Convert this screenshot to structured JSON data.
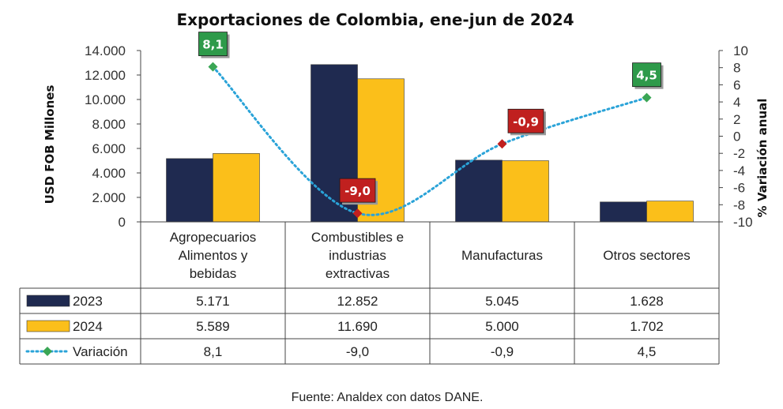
{
  "chart_data": {
    "type": "bar",
    "title": "Exportaciones de Colombia, ene-jun de 2024",
    "ylabel": "USD FOB Millones",
    "y2label": "% Variación anual",
    "ylim": [
      0,
      14000
    ],
    "y2lim": [
      -10,
      10
    ],
    "yticks": [
      "0",
      "2.000",
      "4.000",
      "6.000",
      "8.000",
      "10.000",
      "12.000",
      "14.000"
    ],
    "y2ticks": [
      "-10",
      "-8",
      "-6",
      "-4",
      "-2",
      "0",
      "2",
      "4",
      "6",
      "8",
      "10"
    ],
    "categories": [
      [
        "Agropecuarios",
        "Alimentos y",
        "bebidas"
      ],
      [
        "Combustibles e",
        "industrias",
        "extractivas"
      ],
      [
        "Manufacturas"
      ],
      [
        "Otros sectores"
      ]
    ],
    "series": [
      {
        "name": "2023",
        "type": "bar",
        "color": "#1f2a50",
        "values": [
          5171,
          12852,
          5045,
          1628
        ],
        "labels": [
          "5.171",
          "12.852",
          "5.045",
          "1.628"
        ]
      },
      {
        "name": "2024",
        "type": "bar",
        "color": "#fbbf1a",
        "values": [
          5589,
          11690,
          5000,
          1702
        ],
        "labels": [
          "5.589",
          "11.690",
          "5.000",
          "1.702"
        ]
      },
      {
        "name": "Variación",
        "type": "line",
        "axis": "right",
        "color": "#2aa3d8",
        "markerColor": "#3aa655",
        "values": [
          8.1,
          -9.0,
          -0.9,
          4.5
        ],
        "labels": [
          "8,1",
          "-9,0",
          "-0,9",
          "4,5"
        ]
      }
    ],
    "positiveLabelColor": "#2e9a4a",
    "negativeLabelColor": "#c0201f",
    "negativeMarkerColor": "#c0201f",
    "source": "Fuente: Analdex con datos DANE."
  }
}
